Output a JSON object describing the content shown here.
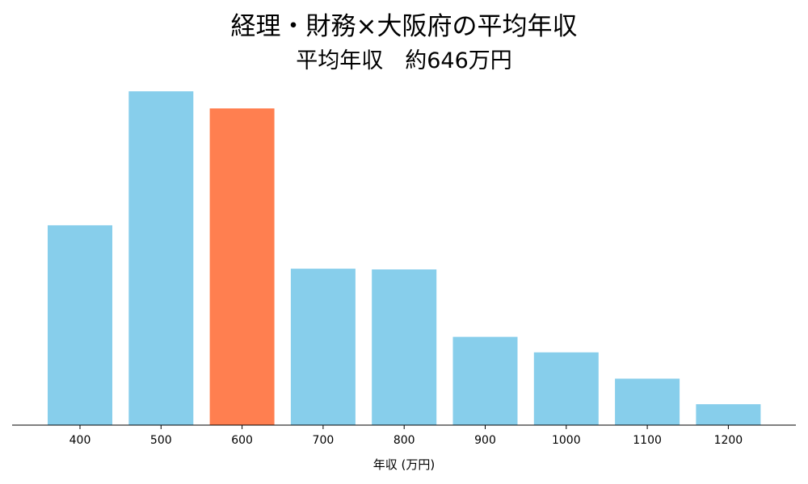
{
  "chart_data": {
    "type": "bar",
    "title": "経理・財務×大阪府の平均年収",
    "subtitle": "平均年収　約646万円",
    "xlabel": "年収 (万円)",
    "ylabel": "",
    "categories": [
      "400",
      "500",
      "600",
      "700",
      "800",
      "900",
      "1000",
      "1100",
      "1200"
    ],
    "values": [
      258,
      431,
      409,
      202,
      201,
      114,
      94,
      60,
      27
    ],
    "ylim": [
      0,
      450
    ],
    "highlight_category": "600",
    "y_axis_visible": false,
    "grid": false,
    "legend": "none"
  },
  "colors": {
    "bar": "#87ceeb",
    "highlight": "#ff7f50",
    "axis": "#000000"
  }
}
